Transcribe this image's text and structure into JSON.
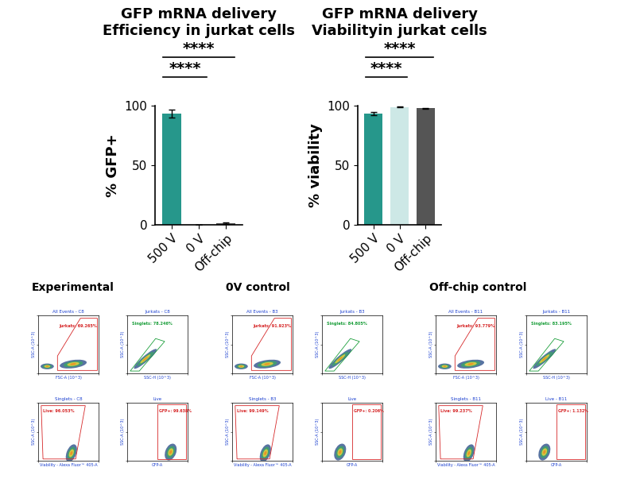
{
  "chart_data": [
    {
      "type": "bar",
      "title": "GFP mRNA delivery\nEfficiency in jurkat cells",
      "y_label": "% GFP+",
      "categories": [
        "500 V",
        "0 V",
        "Off-chip"
      ],
      "values": [
        93.5,
        0.2,
        1.1
      ],
      "errors": [
        3.5,
        0.1,
        0.6
      ],
      "colors": [
        "#26978b",
        "#cde8e6",
        "#555555"
      ],
      "ylim": [
        0,
        100
      ],
      "yticks": [
        0,
        50,
        100
      ],
      "annotations": [
        {
          "text": "****",
          "from": "500 V",
          "to": "Off-chip"
        },
        {
          "text": "****",
          "from": "500 V",
          "to": "0 V"
        }
      ]
    },
    {
      "type": "bar",
      "title": "GFP mRNA delivery\nViabilityin jurkat cells",
      "y_label": "% viability",
      "categories": [
        "500 V",
        "0 V",
        "Off-chip"
      ],
      "values": [
        93.5,
        98.8,
        97.8
      ],
      "errors": [
        1.5,
        0.4,
        0.4
      ],
      "colors": [
        "#26978b",
        "#cde8e6",
        "#555555"
      ],
      "ylim": [
        0,
        100
      ],
      "yticks": [
        0,
        50,
        100
      ],
      "annotations": [
        {
          "text": "****",
          "from": "500 V",
          "to": "Off-chip"
        },
        {
          "text": "****",
          "from": "500 V",
          "to": "0 V"
        }
      ]
    }
  ],
  "flow_cytometry": {
    "tick_labels": false,
    "groups": [
      {
        "title": "Experimental",
        "panels": [
          {
            "title": "All Events - C8",
            "x_label": "FSC-A (10^3)",
            "y_label": "SSC-A (10^3)",
            "gate": "Jurkats: 69.265%",
            "color": "#d62728"
          },
          {
            "title": "Jurkats - C8",
            "x_label": "SSC-H (10^3)",
            "y_label": "SSC-A (10^3)",
            "gate": "Singlets: 78.246%",
            "color": "#1a9e3a"
          },
          {
            "title": "Singlets - C8",
            "x_label": "Viability - Alexa Fluor™ 405-A",
            "y_label": "SSC-A (10^3)",
            "gate": "Live: 96.053%",
            "color": "#d62728"
          },
          {
            "title": "Live",
            "x_label": "GFP-A",
            "y_label": "SSC-A (10^3)",
            "gate": "GFP+: 99.638%",
            "color": "#d62728"
          }
        ]
      },
      {
        "title": "0V control",
        "panels": [
          {
            "title": "All Events - B3",
            "x_label": "FSC-A (10^3)",
            "y_label": "SSC-A (10^3)",
            "gate": "Jurkats: 91.923%",
            "color": "#d62728"
          },
          {
            "title": "Jurkats - B3",
            "x_label": "SSC-H (10^3)",
            "y_label": "SSC-A (10^3)",
            "gate": "Singlets: 84.805%",
            "color": "#1a9e3a"
          },
          {
            "title": "Singlets - B3",
            "x_label": "Viability - Alexa Fluor™ 405-A",
            "y_label": "SSC-A (10^3)",
            "gate": "Live: 99.149%",
            "color": "#d62728"
          },
          {
            "title": "Live",
            "x_label": "GFP-A",
            "y_label": "SSC-A (10^3)",
            "gate": "GFP+: 0.206%",
            "color": "#d62728"
          }
        ]
      },
      {
        "title": "Off-chip control",
        "panels": [
          {
            "title": "All Events - B11",
            "x_label": "FSC-A (10^3)",
            "y_label": "SSC-A (10^3)",
            "gate": "Jurkats: 93.779%",
            "color": "#d62728"
          },
          {
            "title": "Jurkats - B11",
            "x_label": "SSC-H (10^3)",
            "y_label": "SSC-A (10^3)",
            "gate": "Singlets: 83.195%",
            "color": "#1a9e3a"
          },
          {
            "title": "Singlets - B11",
            "x_label": "Viability - Alexa Fluor™ 405-A",
            "y_label": "SSC-A (10^3)",
            "gate": "Live: 99.237%",
            "color": "#d62728"
          },
          {
            "title": "Live - B11",
            "x_label": "GFP-A",
            "y_label": "SSC-A (10^3)",
            "gate": "GFP+: 1.132%",
            "color": "#d62728"
          }
        ]
      }
    ]
  }
}
